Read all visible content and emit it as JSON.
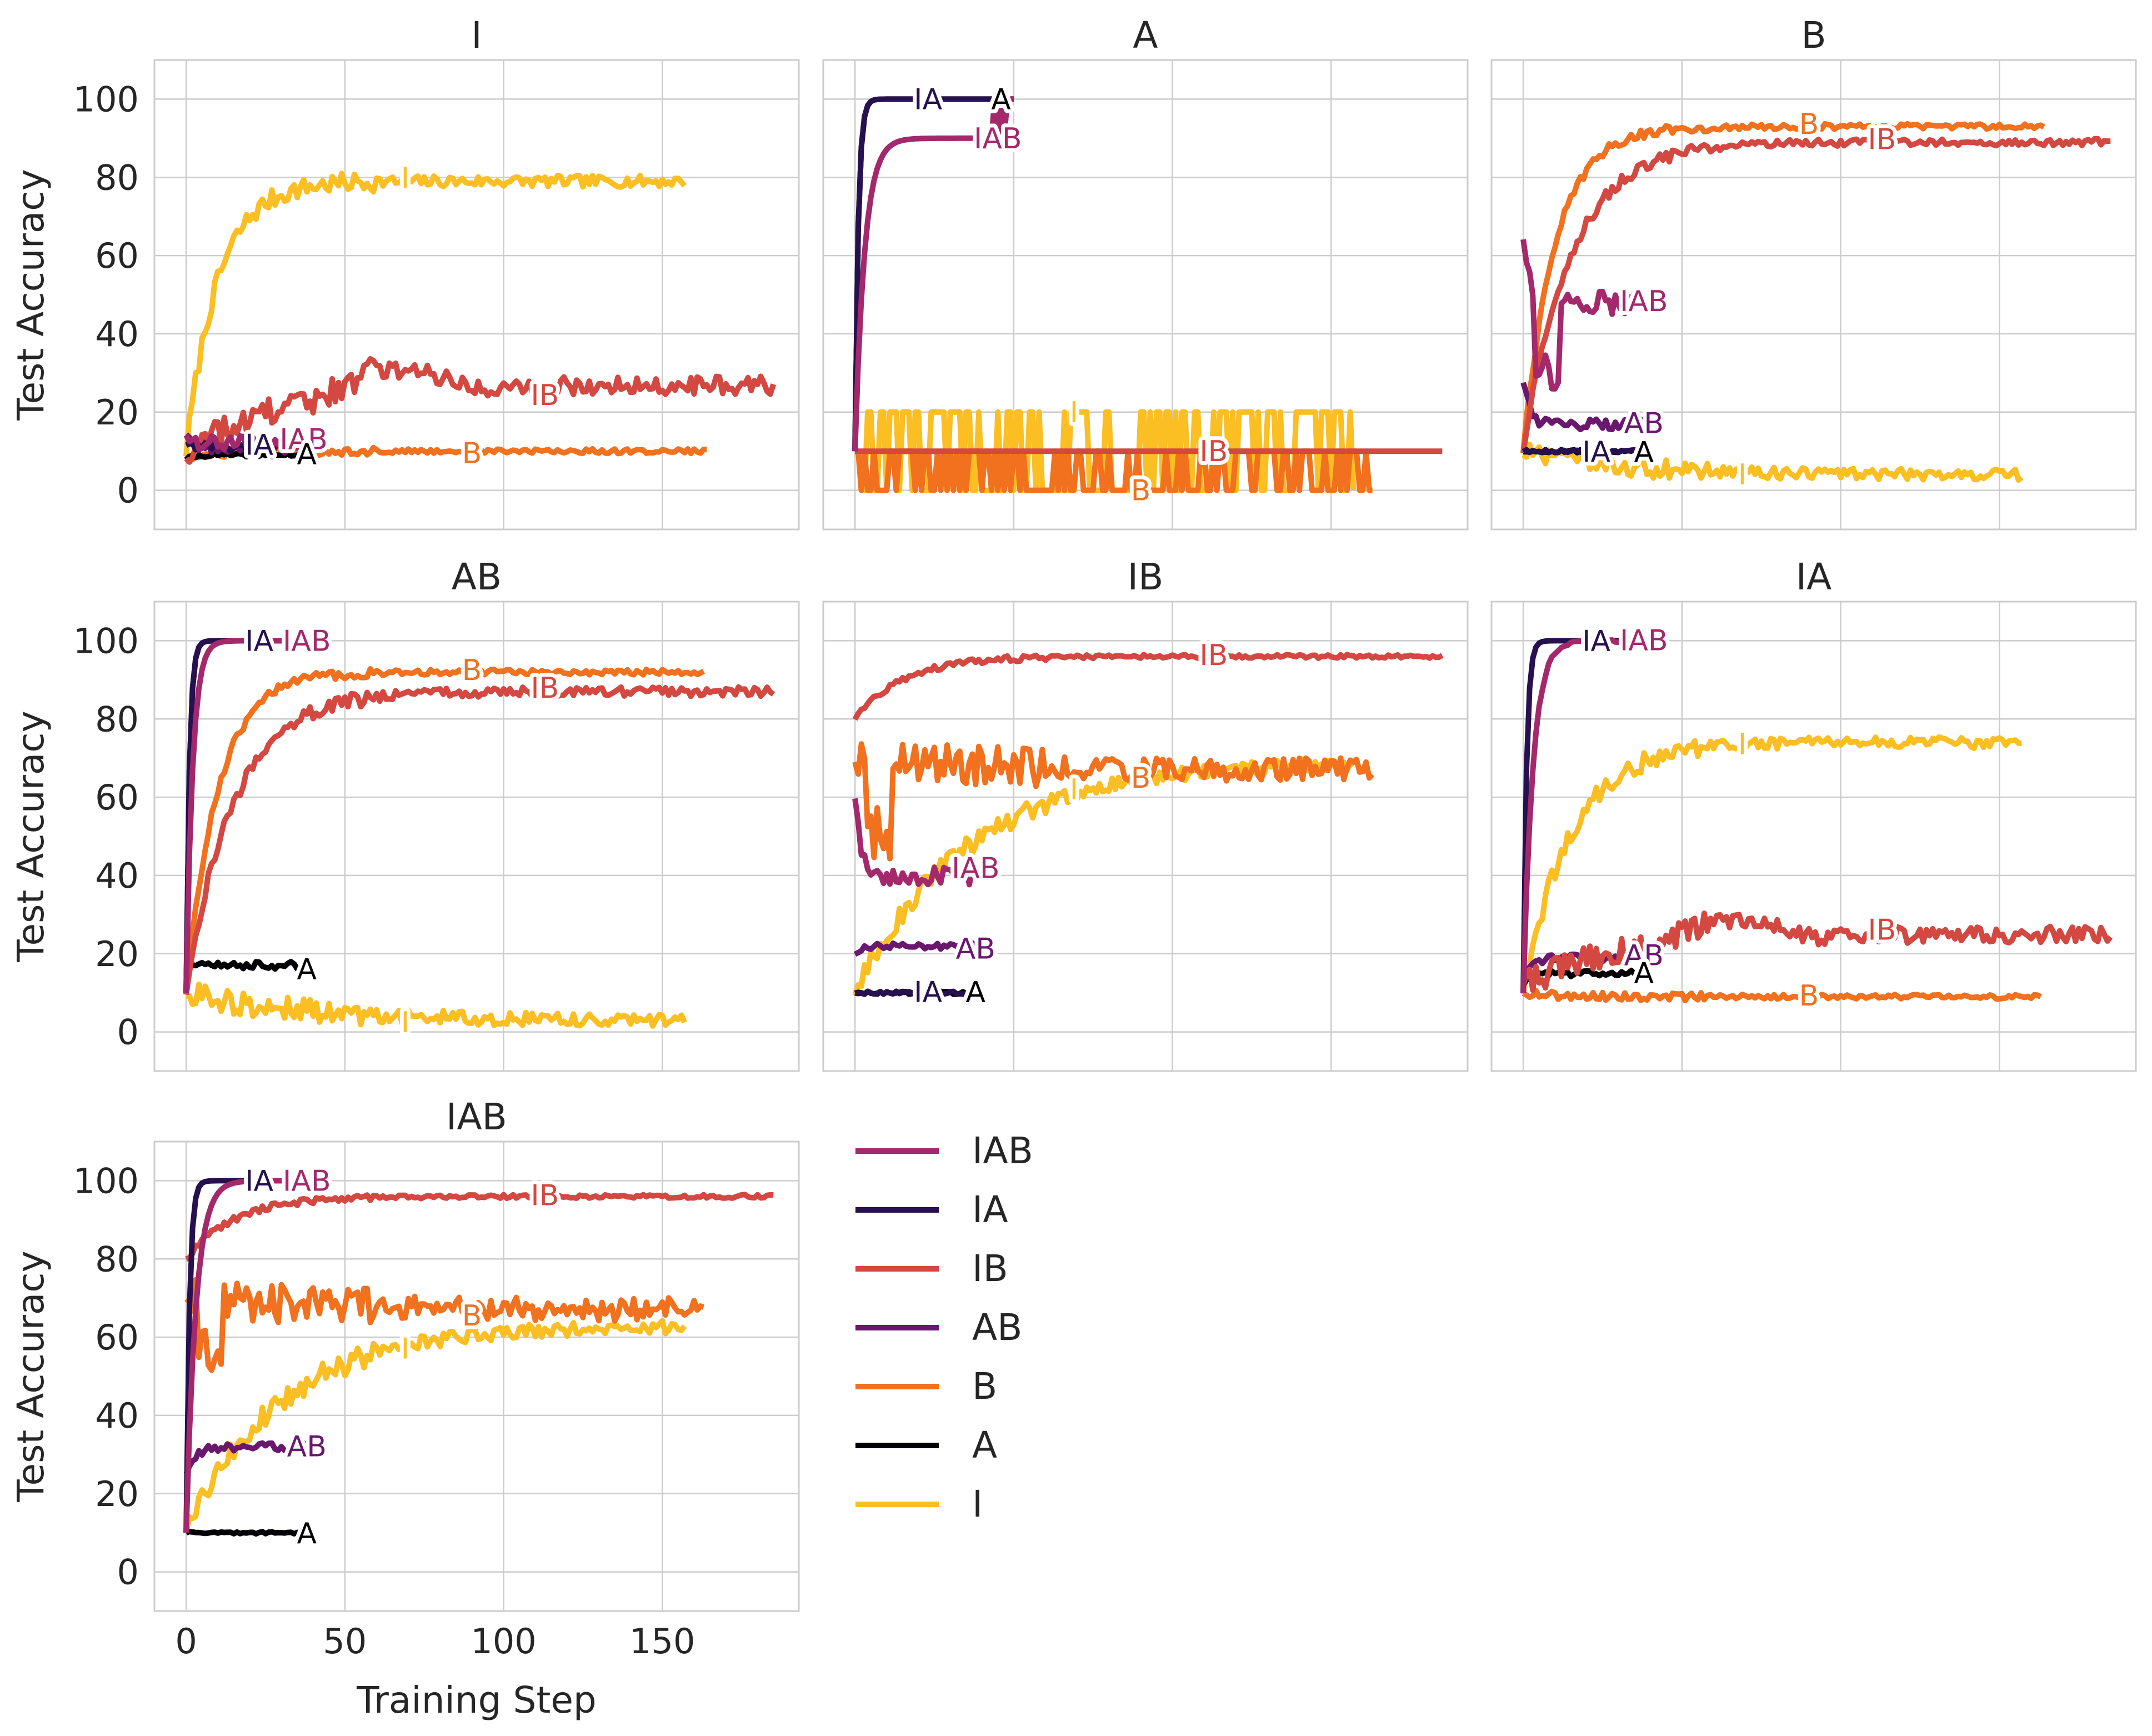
{
  "chart_data": {
    "type": "line",
    "xlabel": "Training Step",
    "ylabel": "Test Accuracy",
    "xlim": [
      -10,
      193
    ],
    "ylim": [
      -10,
      110
    ],
    "xticks": [
      0,
      50,
      100,
      150
    ],
    "yticks": [
      0,
      20,
      40,
      60,
      80,
      100
    ],
    "grid": true,
    "legend_placement": "right of bottom-left panel",
    "colors": {
      "IAB": "#a3286c",
      "IA": "#27104f",
      "IB": "#d44842",
      "AB": "#6a176e",
      "B": "#f1711f",
      "A": "#000004",
      "I": "#fbbe23"
    },
    "legend": [
      "IAB",
      "IA",
      "IB",
      "AB",
      "B",
      "A",
      "I"
    ],
    "panels": [
      {
        "title": "I",
        "series": [
          {
            "name": "IAB",
            "end": 37,
            "start": 15,
            "final": 12,
            "noise": 2,
            "rise": 2,
            "label_x": 42
          },
          {
            "name": "IA",
            "end": 38,
            "start": 12,
            "final": 11,
            "noise": 1,
            "rise": 2,
            "label_x": 23
          },
          {
            "name": "IB",
            "end": 185,
            "start": 10,
            "final": 27,
            "noise": 4,
            "rise": 30,
            "bump": 6,
            "label_x": 113
          },
          {
            "name": "AB",
            "end": 33,
            "start": 15,
            "final": 11,
            "noise": 1.5,
            "rise": 2
          },
          {
            "name": "B",
            "end": 164,
            "start": 8,
            "final": 10,
            "noise": 1,
            "rise": 10,
            "label_x": 90
          },
          {
            "name": "A",
            "end": 38,
            "start": 8,
            "final": 9,
            "noise": 0.4,
            "rise": 3,
            "label_x": 46
          },
          {
            "name": "I",
            "end": 157,
            "start": 10,
            "final": 79,
            "noise": 2.5,
            "rise": 10,
            "label_x": 69
          }
        ],
        "labels": [
          "IAB",
          "IA",
          "IB",
          "B",
          "A",
          "I"
        ]
      },
      {
        "title": "A",
        "series": [
          {
            "name": "IAB",
            "end": 50,
            "start": 10,
            "final": 90,
            "noise": 0,
            "rise": 3,
            "jump_tail": 100,
            "label_x": 45
          },
          {
            "name": "IA",
            "end": 50,
            "start": 10,
            "final": 100,
            "noise": 0,
            "rise": 1,
            "label_x": 23
          },
          {
            "name": "IB",
            "end": 185,
            "start": 10,
            "final": 10,
            "noise": 0,
            "rise": 1,
            "label_x": 113
          },
          {
            "name": "B",
            "end": 163,
            "start": 10,
            "final": 0,
            "noise": 0,
            "rise": 1,
            "toggle": true,
            "toggle_lo": 0,
            "toggle_hi": 10,
            "label_x": 90
          },
          {
            "name": "A",
            "end": 50,
            "start": 10,
            "final": 100,
            "noise": 0,
            "rise": 1,
            "label_x": 46
          },
          {
            "name": "I",
            "end": 157,
            "start": 10,
            "final": 10,
            "noise": 0,
            "rise": 1,
            "toggle": true,
            "toggle_lo": 0,
            "toggle_hi": 20,
            "label_x": 69
          }
        ],
        "labels": [
          "IAB",
          "IA",
          "IB",
          "B",
          "A",
          "I"
        ]
      },
      {
        "title": "B",
        "series": [
          {
            "name": "IAB",
            "end": 38,
            "start": 65,
            "final": 48,
            "noise": 3,
            "rise": 2,
            "dip": 30,
            "label_x": 47
          },
          {
            "name": "IA",
            "end": 38,
            "start": 10,
            "final": 10,
            "noise": 0.4,
            "rise": 1,
            "label_x": 23
          },
          {
            "name": "IB",
            "end": 185,
            "start": 10,
            "final": 89,
            "noise": 1.5,
            "rise": 15,
            "label_x": 113
          },
          {
            "name": "AB",
            "end": 38,
            "start": 28,
            "final": 17,
            "noise": 1.5,
            "rise": 2,
            "label_x": 47
          },
          {
            "name": "B",
            "end": 164,
            "start": 10,
            "final": 93,
            "noise": 1.2,
            "rise": 10,
            "label_x": 90
          },
          {
            "name": "A",
            "end": 38,
            "start": 10,
            "final": 10,
            "noise": 0.4,
            "rise": 1,
            "label_x": 46
          },
          {
            "name": "I",
            "end": 157,
            "start": 10,
            "final": 4,
            "noise": 2.5,
            "rise": 30,
            "label_x": 69
          }
        ],
        "labels": [
          "IAB",
          "IA",
          "IB",
          "AB",
          "B",
          "A",
          "I"
        ]
      },
      {
        "title": "AB",
        "series": [
          {
            "name": "IAB",
            "end": 38,
            "start": 10,
            "final": 100,
            "noise": 0,
            "rise": 2,
            "label_x": 45
          },
          {
            "name": "IA",
            "end": 38,
            "start": 10,
            "final": 100,
            "noise": 0,
            "rise": 1,
            "label_x": 23
          },
          {
            "name": "IB",
            "end": 185,
            "start": 10,
            "final": 87,
            "noise": 2,
            "rise": 15,
            "label_x": 113
          },
          {
            "name": "AB",
            "end": 38,
            "start": 10,
            "final": 100,
            "noise": 0,
            "rise": 1,
            "label_x": 45
          },
          {
            "name": "B",
            "end": 163,
            "start": 10,
            "final": 92,
            "noise": 1.2,
            "rise": 10,
            "label_x": 90
          },
          {
            "name": "A",
            "end": 38,
            "start": 20,
            "final": 17,
            "noise": 1,
            "rise": 1,
            "label_x": 46
          },
          {
            "name": "I",
            "end": 157,
            "start": 10,
            "final": 3,
            "noise": 3,
            "rise": 35,
            "label_x": 69
          }
        ],
        "labels": [
          "IAB",
          "IA",
          "IB",
          "B",
          "A",
          "I"
        ]
      },
      {
        "title": "IB",
        "series": [
          {
            "name": "IAB",
            "end": 38,
            "start": 60,
            "final": 40,
            "noise": 2.5,
            "rise": 2,
            "label_x": 47
          },
          {
            "name": "IA",
            "end": 38,
            "start": 10,
            "final": 10,
            "noise": 0.4,
            "rise": 1,
            "label_x": 23
          },
          {
            "name": "IB",
            "end": 185,
            "start": 80,
            "final": 96,
            "noise": 0.8,
            "rise": 15,
            "label_x": 113
          },
          {
            "name": "AB",
            "end": 38,
            "start": 20,
            "final": 22,
            "noise": 0.8,
            "rise": 2,
            "label_x": 47
          },
          {
            "name": "B",
            "end": 163,
            "start": 70,
            "final": 67,
            "noise": 5,
            "rise": 40,
            "dip": 50,
            "label_x": 90
          },
          {
            "name": "A",
            "end": 38,
            "start": 10,
            "final": 10,
            "noise": 0.4,
            "rise": 1,
            "label_x": 46
          },
          {
            "name": "I",
            "end": 157,
            "start": 10,
            "final": 69,
            "noise": 3,
            "rise": 35,
            "label_x": 69
          }
        ],
        "labels": [
          "IAB",
          "IA",
          "IB",
          "AB",
          "B",
          "A",
          "I"
        ]
      },
      {
        "title": "IA",
        "series": [
          {
            "name": "IAB",
            "end": 38,
            "start": 10,
            "final": 100,
            "noise": 0.5,
            "rise": 3,
            "label_x": 45
          },
          {
            "name": "IA",
            "end": 38,
            "start": 10,
            "final": 100,
            "noise": 0,
            "rise": 1,
            "label_x": 23
          },
          {
            "name": "IB",
            "end": 185,
            "start": 12,
            "final": 25,
            "noise": 3.5,
            "rise": 30,
            "bump": 5,
            "label_x": 113
          },
          {
            "name": "AB",
            "end": 38,
            "start": 15,
            "final": 19,
            "noise": 1,
            "rise": 3,
            "label_x": 45
          },
          {
            "name": "B",
            "end": 163,
            "start": 10,
            "final": 9,
            "noise": 1,
            "rise": 10,
            "label_x": 90
          },
          {
            "name": "A",
            "end": 38,
            "start": 12,
            "final": 15,
            "noise": 0.8,
            "rise": 3,
            "label_x": 46
          },
          {
            "name": "I",
            "end": 157,
            "start": 10,
            "final": 74,
            "noise": 2.5,
            "rise": 15,
            "label_x": 69
          }
        ],
        "labels": [
          "IAB",
          "IA",
          "IB",
          "AB",
          "B",
          "A",
          "I"
        ]
      },
      {
        "title": "IAB",
        "series": [
          {
            "name": "IAB",
            "end": 38,
            "start": 10,
            "final": 100,
            "noise": 0,
            "rise": 3,
            "label_x": 47
          },
          {
            "name": "IA",
            "end": 38,
            "start": 10,
            "final": 100,
            "noise": 0,
            "rise": 1,
            "label_x": 23
          },
          {
            "name": "IB",
            "end": 185,
            "start": 80,
            "final": 96,
            "noise": 0.8,
            "rise": 15,
            "label_x": 113
          },
          {
            "name": "AB",
            "end": 38,
            "start": 25,
            "final": 32,
            "noise": 1,
            "rise": 3,
            "label_x": 47
          },
          {
            "name": "B",
            "end": 163,
            "start": 70,
            "final": 67,
            "noise": 5,
            "rise": 40,
            "dip": 55,
            "label_x": 90
          },
          {
            "name": "A",
            "end": 38,
            "start": 10,
            "final": 10,
            "noise": 0.3,
            "rise": 1,
            "label_x": 46
          },
          {
            "name": "I",
            "end": 157,
            "start": 10,
            "final": 63,
            "noise": 3,
            "rise": 30,
            "label_x": 69
          }
        ],
        "labels": [
          "IAB",
          "IA",
          "IB",
          "AB",
          "B",
          "A",
          "I"
        ]
      }
    ]
  }
}
